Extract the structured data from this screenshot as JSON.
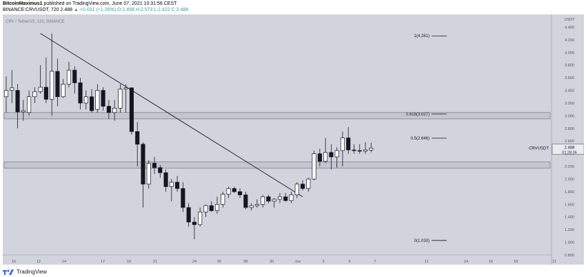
{
  "header": {
    "author": "BitcoinMaximus1",
    "published": "published on TradingView.com, June 07, 2021 10:31:56 CEST",
    "symbol": "BINANCE:CRVUSDT, 720",
    "price": "2.488",
    "change": "▲ +0.031 (+1.26%)",
    "ohlc": "O:2.458  H:2.573  L:2.422  C:2.488"
  },
  "chart_title": "CRV / TetherUS, 12h, BINANCE",
  "footer": {
    "brand": "TradingView"
  },
  "chart_data": {
    "type": "candlestick",
    "title": "CRV / TetherUS, 12h, BINANCE",
    "price_unit": "USDT",
    "ylim": [
      0.8,
      4.6
    ],
    "yticks": [
      "4.400",
      "4.200",
      "4.000",
      "3.800",
      "3.600",
      "3.400",
      "3.200",
      "3.000",
      "2.800",
      "2.600",
      "2.400",
      "2.200",
      "2.000",
      "1.800",
      "1.600",
      "1.400",
      "1.200",
      "1.000",
      "0.800"
    ],
    "xticks": [
      "10",
      "12",
      "14",
      "17",
      "19",
      "21",
      "24",
      "26",
      "28",
      "30",
      "Jun",
      "3",
      "5",
      "7",
      "11",
      "14",
      "16",
      "18",
      "21"
    ],
    "last_price": {
      "label": "CRVUSDT",
      "value": "2.488",
      "countdown": "01:28:05"
    },
    "fib_levels": [
      {
        "label": "1(4.261)",
        "value": 4.261
      },
      {
        "label": "0.618(3.027)",
        "value": 3.027
      },
      {
        "label": "0.5(2.646)",
        "value": 2.646
      },
      {
        "label": "0(1.030)",
        "value": 1.03
      }
    ],
    "zones": [
      {
        "low": 2.95,
        "high": 3.05
      },
      {
        "low": 2.17,
        "high": 2.27
      }
    ],
    "trendline": [
      {
        "bar": 6,
        "price": 4.3
      },
      {
        "bar": 52,
        "price": 1.72
      }
    ],
    "candles": [
      {
        "o": 3.3,
        "h": 3.62,
        "l": 3.05,
        "c": 3.4
      },
      {
        "o": 3.4,
        "h": 3.72,
        "l": 3.2,
        "c": 3.44
      },
      {
        "o": 3.4,
        "h": 3.5,
        "l": 2.8,
        "c": 3.06
      },
      {
        "o": 3.06,
        "h": 3.25,
        "l": 2.92,
        "c": 3.08
      },
      {
        "o": 3.05,
        "h": 3.4,
        "l": 3.0,
        "c": 3.3
      },
      {
        "o": 3.3,
        "h": 3.45,
        "l": 3.2,
        "c": 3.38
      },
      {
        "o": 3.38,
        "h": 3.8,
        "l": 3.35,
        "c": 3.45
      },
      {
        "o": 3.45,
        "h": 3.92,
        "l": 3.2,
        "c": 3.26
      },
      {
        "o": 3.26,
        "h": 4.3,
        "l": 3.0,
        "c": 3.7
      },
      {
        "o": 3.7,
        "h": 3.9,
        "l": 3.15,
        "c": 3.3
      },
      {
        "o": 3.3,
        "h": 3.58,
        "l": 3.28,
        "c": 3.5
      },
      {
        "o": 3.5,
        "h": 3.85,
        "l": 3.45,
        "c": 3.72
      },
      {
        "o": 3.72,
        "h": 3.78,
        "l": 3.35,
        "c": 3.52
      },
      {
        "o": 3.52,
        "h": 3.6,
        "l": 3.1,
        "c": 3.2
      },
      {
        "o": 3.2,
        "h": 3.4,
        "l": 3.1,
        "c": 3.3
      },
      {
        "o": 3.3,
        "h": 3.42,
        "l": 3.05,
        "c": 3.08
      },
      {
        "o": 3.1,
        "h": 3.5,
        "l": 3.05,
        "c": 3.4
      },
      {
        "o": 3.4,
        "h": 3.45,
        "l": 3.08,
        "c": 3.15
      },
      {
        "o": 3.15,
        "h": 3.25,
        "l": 2.95,
        "c": 3.05
      },
      {
        "o": 3.05,
        "h": 3.25,
        "l": 2.92,
        "c": 3.12
      },
      {
        "o": 3.12,
        "h": 3.5,
        "l": 3.05,
        "c": 3.42
      },
      {
        "o": 3.42,
        "h": 3.5,
        "l": 3.05,
        "c": 3.44
      },
      {
        "o": 3.44,
        "h": 3.45,
        "l": 2.7,
        "c": 2.75
      },
      {
        "o": 2.75,
        "h": 2.9,
        "l": 2.2,
        "c": 2.55
      },
      {
        "o": 2.55,
        "h": 2.58,
        "l": 1.55,
        "c": 1.92
      },
      {
        "o": 1.92,
        "h": 2.3,
        "l": 1.85,
        "c": 2.25
      },
      {
        "o": 2.25,
        "h": 2.35,
        "l": 2.08,
        "c": 2.18
      },
      {
        "o": 2.18,
        "h": 2.22,
        "l": 2.02,
        "c": 2.1
      },
      {
        "o": 2.1,
        "h": 2.15,
        "l": 1.8,
        "c": 1.88
      },
      {
        "o": 1.88,
        "h": 2.0,
        "l": 1.65,
        "c": 1.95
      },
      {
        "o": 1.95,
        "h": 2.05,
        "l": 1.8,
        "c": 1.85
      },
      {
        "o": 1.85,
        "h": 1.95,
        "l": 1.48,
        "c": 1.55
      },
      {
        "o": 1.55,
        "h": 1.62,
        "l": 1.25,
        "c": 1.32
      },
      {
        "o": 1.32,
        "h": 1.4,
        "l": 1.05,
        "c": 1.28
      },
      {
        "o": 1.28,
        "h": 1.55,
        "l": 1.25,
        "c": 1.48
      },
      {
        "o": 1.48,
        "h": 1.6,
        "l": 1.4,
        "c": 1.58
      },
      {
        "o": 1.58,
        "h": 1.65,
        "l": 1.48,
        "c": 1.5
      },
      {
        "o": 1.5,
        "h": 1.72,
        "l": 1.45,
        "c": 1.6
      },
      {
        "o": 1.6,
        "h": 1.8,
        "l": 1.55,
        "c": 1.76
      },
      {
        "o": 1.76,
        "h": 1.88,
        "l": 1.7,
        "c": 1.85
      },
      {
        "o": 1.85,
        "h": 1.88,
        "l": 1.78,
        "c": 1.8
      },
      {
        "o": 1.8,
        "h": 1.85,
        "l": 1.7,
        "c": 1.75
      },
      {
        "o": 1.75,
        "h": 1.8,
        "l": 1.52,
        "c": 1.55
      },
      {
        "o": 1.55,
        "h": 1.62,
        "l": 1.5,
        "c": 1.58
      },
      {
        "o": 1.58,
        "h": 1.68,
        "l": 1.55,
        "c": 1.6
      },
      {
        "o": 1.6,
        "h": 1.75,
        "l": 1.55,
        "c": 1.72
      },
      {
        "o": 1.72,
        "h": 1.75,
        "l": 1.62,
        "c": 1.65
      },
      {
        "o": 1.65,
        "h": 1.7,
        "l": 1.55,
        "c": 1.68
      },
      {
        "o": 1.68,
        "h": 1.78,
        "l": 1.62,
        "c": 1.72
      },
      {
        "o": 1.72,
        "h": 1.78,
        "l": 1.64,
        "c": 1.66
      },
      {
        "o": 1.66,
        "h": 1.8,
        "l": 1.62,
        "c": 1.75
      },
      {
        "o": 1.75,
        "h": 1.95,
        "l": 1.7,
        "c": 1.92
      },
      {
        "o": 1.92,
        "h": 1.98,
        "l": 1.82,
        "c": 1.85
      },
      {
        "o": 1.85,
        "h": 2.02,
        "l": 1.8,
        "c": 2.0
      },
      {
        "o": 2.0,
        "h": 2.45,
        "l": 1.98,
        "c": 2.4
      },
      {
        "o": 2.4,
        "h": 2.48,
        "l": 2.2,
        "c": 2.28
      },
      {
        "o": 2.28,
        "h": 2.65,
        "l": 2.25,
        "c": 2.42
      },
      {
        "o": 2.42,
        "h": 2.55,
        "l": 2.15,
        "c": 2.35
      },
      {
        "o": 2.35,
        "h": 2.5,
        "l": 2.18,
        "c": 2.45
      },
      {
        "o": 2.45,
        "h": 2.75,
        "l": 2.2,
        "c": 2.65
      },
      {
        "o": 2.65,
        "h": 2.82,
        "l": 2.4,
        "c": 2.46
      },
      {
        "o": 2.46,
        "h": 2.55,
        "l": 2.4,
        "c": 2.45
      },
      {
        "o": 2.45,
        "h": 2.55,
        "l": 2.4,
        "c": 2.44
      },
      {
        "o": 2.44,
        "h": 2.58,
        "l": 2.4,
        "c": 2.46
      },
      {
        "o": 2.458,
        "h": 2.573,
        "l": 2.422,
        "c": 2.488
      }
    ]
  }
}
